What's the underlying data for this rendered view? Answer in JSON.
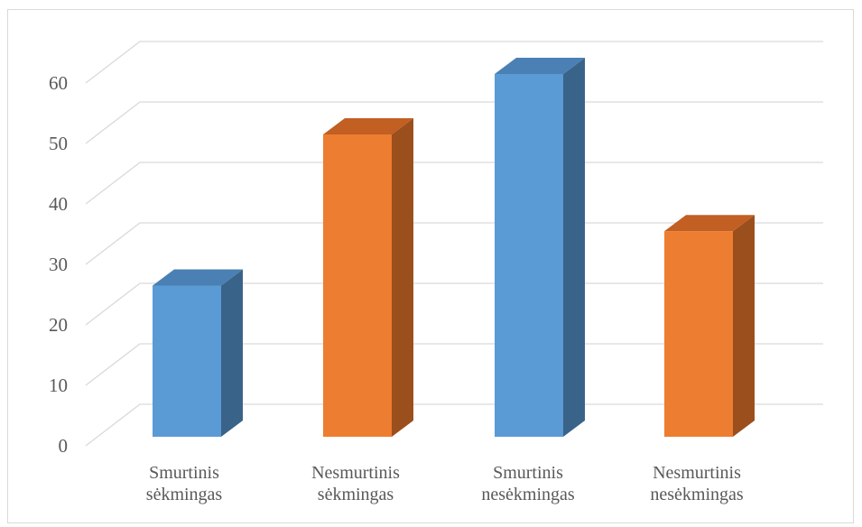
{
  "chart_data": {
    "type": "bar",
    "style": "3d-column",
    "categories": [
      [
        "Smurtinis",
        "sėkmingas"
      ],
      [
        "Nesmurtinis",
        "sėkmingas"
      ],
      [
        "Smurtinis",
        "nesėkmingas"
      ],
      [
        "Nesmurtinis",
        "nesėkmingas"
      ]
    ],
    "values": [
      25,
      50,
      60,
      34
    ],
    "colors": [
      "#5b9bd5",
      "#ed7d31",
      "#5b9bd5",
      "#ed7d31"
    ],
    "side_colors": [
      "#3a6389",
      "#9b4f1c",
      "#3a6389",
      "#9b4f1c"
    ],
    "top_colors": [
      "#4a80b3",
      "#c25f22",
      "#4a80b3",
      "#c25f22"
    ],
    "ylim": [
      0,
      65
    ],
    "yticks": [
      0,
      10,
      20,
      30,
      40,
      50,
      60
    ],
    "grid": true,
    "title": "",
    "xlabel": "",
    "ylabel": ""
  }
}
